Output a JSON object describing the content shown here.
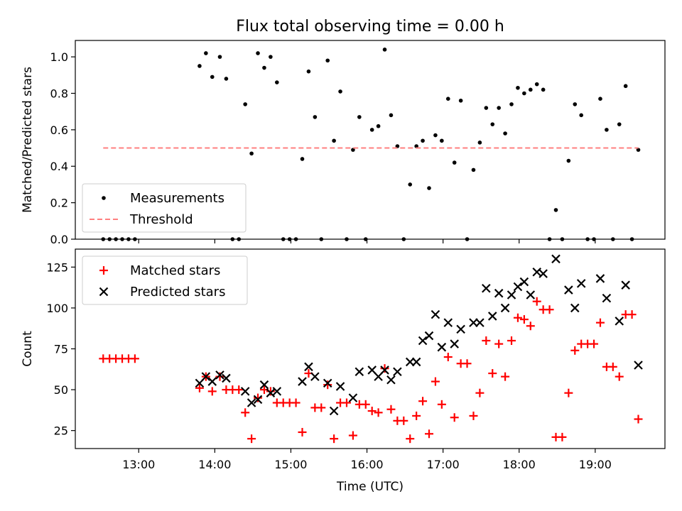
{
  "chart_data": [
    {
      "type": "scatter",
      "title": "Flux total observing time = 0.00 h",
      "xlabel": "",
      "ylabel": "Matched/Predicted stars",
      "x_unit": "hours UTC",
      "xlim": [
        "12:10",
        "19:55"
      ],
      "ylim": [
        0,
        1.09
      ],
      "y_ticks": [
        "0.0",
        "0.2",
        "0.4",
        "0.6",
        "0.8",
        "1.0"
      ],
      "legend_position": "lower-left",
      "series": [
        {
          "name": "Measurements",
          "marker": "dot",
          "color": "#000000",
          "points": [
            [
              "12:32",
              0
            ],
            [
              "12:37",
              0
            ],
            [
              "12:42",
              0
            ],
            [
              "12:47",
              0
            ],
            [
              "12:52",
              0
            ],
            [
              "12:57",
              0
            ],
            [
              "13:48",
              0.95
            ],
            [
              "13:53",
              1.02
            ],
            [
              "13:58",
              0.89
            ],
            [
              "14:04",
              1.0
            ],
            [
              "14:09",
              0.88
            ],
            [
              "14:14",
              0
            ],
            [
              "14:19",
              0
            ],
            [
              "14:24",
              0.74
            ],
            [
              "14:29",
              0.47
            ],
            [
              "14:34",
              1.02
            ],
            [
              "14:39",
              0.94
            ],
            [
              "14:44",
              1.0
            ],
            [
              "14:49",
              0.86
            ],
            [
              "14:54",
              0
            ],
            [
              "14:59",
              0
            ],
            [
              "15:04",
              0
            ],
            [
              "15:09",
              0.44
            ],
            [
              "15:14",
              0.92
            ],
            [
              "15:19",
              0.67
            ],
            [
              "15:24",
              0
            ],
            [
              "15:29",
              0.98
            ],
            [
              "15:34",
              0.54
            ],
            [
              "15:39",
              0.81
            ],
            [
              "15:44",
              0
            ],
            [
              "15:49",
              0.49
            ],
            [
              "15:54",
              0.67
            ],
            [
              "15:59",
              0
            ],
            [
              "16:04",
              0.6
            ],
            [
              "16:09",
              0.62
            ],
            [
              "16:14",
              1.04
            ],
            [
              "16:19",
              0.68
            ],
            [
              "16:24",
              0.51
            ],
            [
              "16:29",
              0
            ],
            [
              "16:34",
              0.3
            ],
            [
              "16:39",
              0.51
            ],
            [
              "16:44",
              0.54
            ],
            [
              "16:49",
              0.28
            ],
            [
              "16:54",
              0.57
            ],
            [
              "16:59",
              0.54
            ],
            [
              "17:04",
              0.77
            ],
            [
              "17:09",
              0.42
            ],
            [
              "17:14",
              0.76
            ],
            [
              "17:19",
              0
            ],
            [
              "17:24",
              0.38
            ],
            [
              "17:29",
              0.53
            ],
            [
              "17:34",
              0.72
            ],
            [
              "17:39",
              0.63
            ],
            [
              "17:44",
              0.72
            ],
            [
              "17:49",
              0.58
            ],
            [
              "17:54",
              0.74
            ],
            [
              "17:59",
              0.83
            ],
            [
              "18:04",
              0.8
            ],
            [
              "18:09",
              0.82
            ],
            [
              "18:14",
              0.85
            ],
            [
              "18:19",
              0.82
            ],
            [
              "18:24",
              0
            ],
            [
              "18:29",
              0.16
            ],
            [
              "18:34",
              0
            ],
            [
              "18:39",
              0.43
            ],
            [
              "18:44",
              0.74
            ],
            [
              "18:49",
              0.68
            ],
            [
              "18:54",
              0
            ],
            [
              "18:59",
              0
            ],
            [
              "19:04",
              0.77
            ],
            [
              "19:09",
              0.6
            ],
            [
              "19:14",
              0
            ],
            [
              "19:19",
              0.63
            ],
            [
              "19:24",
              0.84
            ],
            [
              "19:29",
              0
            ],
            [
              "19:34",
              0.49
            ]
          ]
        },
        {
          "name": "Threshold",
          "style": "dashed",
          "color": "#ff7f7f",
          "points": [
            [
              "12:32",
              0.5
            ],
            [
              "19:34",
              0.5
            ]
          ]
        }
      ]
    },
    {
      "type": "scatter",
      "title": "",
      "xlabel": "Time (UTC)",
      "ylabel": "Count",
      "x_unit": "hours UTC",
      "xlim": [
        "12:10",
        "19:55"
      ],
      "ylim": [
        14,
        136
      ],
      "y_ticks": [
        "25",
        "50",
        "75",
        "100",
        "125"
      ],
      "x_ticks": [
        "13:00",
        "14:00",
        "15:00",
        "16:00",
        "17:00",
        "18:00",
        "19:00"
      ],
      "legend_position": "top-left",
      "series": [
        {
          "name": "Matched stars",
          "marker": "plus",
          "color": "#ff0000",
          "points": [
            [
              "12:32",
              69
            ],
            [
              "12:37",
              69
            ],
            [
              "12:42",
              69
            ],
            [
              "12:47",
              69
            ],
            [
              "12:52",
              69
            ],
            [
              "12:57",
              69
            ],
            [
              "13:48",
              51
            ],
            [
              "13:53",
              58
            ],
            [
              "13:58",
              49
            ],
            [
              "14:04",
              58
            ],
            [
              "14:09",
              50
            ],
            [
              "14:14",
              50
            ],
            [
              "14:19",
              50
            ],
            [
              "14:24",
              36
            ],
            [
              "14:29",
              20
            ],
            [
              "14:34",
              45
            ],
            [
              "14:39",
              50
            ],
            [
              "14:44",
              49
            ],
            [
              "14:49",
              42
            ],
            [
              "14:54",
              42
            ],
            [
              "14:59",
              42
            ],
            [
              "15:04",
              42
            ],
            [
              "15:09",
              24
            ],
            [
              "15:14",
              60
            ],
            [
              "15:19",
              39
            ],
            [
              "15:24",
              39
            ],
            [
              "15:29",
              53
            ],
            [
              "15:34",
              20
            ],
            [
              "15:39",
              42
            ],
            [
              "15:44",
              42
            ],
            [
              "15:49",
              22
            ],
            [
              "15:54",
              41
            ],
            [
              "15:59",
              41
            ],
            [
              "16:04",
              37
            ],
            [
              "16:09",
              36
            ],
            [
              "16:14",
              63
            ],
            [
              "16:19",
              38
            ],
            [
              "16:24",
              31
            ],
            [
              "16:29",
              31
            ],
            [
              "16:34",
              20
            ],
            [
              "16:39",
              34
            ],
            [
              "16:44",
              43
            ],
            [
              "16:49",
              23
            ],
            [
              "16:54",
              55
            ],
            [
              "16:59",
              41
            ],
            [
              "17:04",
              70
            ],
            [
              "17:09",
              33
            ],
            [
              "17:14",
              66
            ],
            [
              "17:19",
              66
            ],
            [
              "17:24",
              34
            ],
            [
              "17:29",
              48
            ],
            [
              "17:34",
              80
            ],
            [
              "17:39",
              60
            ],
            [
              "17:44",
              78
            ],
            [
              "17:49",
              58
            ],
            [
              "17:54",
              80
            ],
            [
              "17:59",
              94
            ],
            [
              "18:04",
              93
            ],
            [
              "18:09",
              89
            ],
            [
              "18:14",
              104
            ],
            [
              "18:19",
              99
            ],
            [
              "18:24",
              99
            ],
            [
              "18:29",
              21
            ],
            [
              "18:34",
              21
            ],
            [
              "18:39",
              48
            ],
            [
              "18:44",
              74
            ],
            [
              "18:49",
              78
            ],
            [
              "18:54",
              78
            ],
            [
              "18:59",
              78
            ],
            [
              "19:04",
              91
            ],
            [
              "19:09",
              64
            ],
            [
              "19:14",
              64
            ],
            [
              "19:19",
              58
            ],
            [
              "19:24",
              96
            ],
            [
              "19:29",
              96
            ],
            [
              "19:34",
              32
            ]
          ]
        },
        {
          "name": "Predicted stars",
          "marker": "x",
          "color": "#000000",
          "points": [
            [
              "13:48",
              54
            ],
            [
              "13:53",
              58
            ],
            [
              "13:58",
              55
            ],
            [
              "14:04",
              59
            ],
            [
              "14:09",
              57
            ],
            [
              "14:24",
              49
            ],
            [
              "14:29",
              42
            ],
            [
              "14:34",
              44
            ],
            [
              "14:39",
              53
            ],
            [
              "14:44",
              48
            ],
            [
              "14:49",
              49
            ],
            [
              "15:09",
              55
            ],
            [
              "15:14",
              64
            ],
            [
              "15:19",
              58
            ],
            [
              "15:29",
              54
            ],
            [
              "15:34",
              37
            ],
            [
              "15:39",
              52
            ],
            [
              "15:49",
              45
            ],
            [
              "15:54",
              61
            ],
            [
              "16:04",
              62
            ],
            [
              "16:09",
              58
            ],
            [
              "16:14",
              62
            ],
            [
              "16:19",
              56
            ],
            [
              "16:24",
              61
            ],
            [
              "16:34",
              67
            ],
            [
              "16:39",
              67
            ],
            [
              "16:44",
              80
            ],
            [
              "16:49",
              83
            ],
            [
              "16:54",
              96
            ],
            [
              "16:59",
              76
            ],
            [
              "17:04",
              91
            ],
            [
              "17:09",
              78
            ],
            [
              "17:14",
              87
            ],
            [
              "17:24",
              91
            ],
            [
              "17:29",
              91
            ],
            [
              "17:34",
              112
            ],
            [
              "17:39",
              95
            ],
            [
              "17:44",
              109
            ],
            [
              "17:49",
              100
            ],
            [
              "17:54",
              108
            ],
            [
              "17:59",
              113
            ],
            [
              "18:04",
              116
            ],
            [
              "18:09",
              108
            ],
            [
              "18:14",
              122
            ],
            [
              "18:19",
              121
            ],
            [
              "18:29",
              130
            ],
            [
              "18:39",
              111
            ],
            [
              "18:44",
              100
            ],
            [
              "18:49",
              115
            ],
            [
              "19:04",
              118
            ],
            [
              "19:09",
              106
            ],
            [
              "19:19",
              92
            ],
            [
              "19:24",
              114
            ],
            [
              "19:34",
              65
            ]
          ]
        }
      ]
    }
  ]
}
